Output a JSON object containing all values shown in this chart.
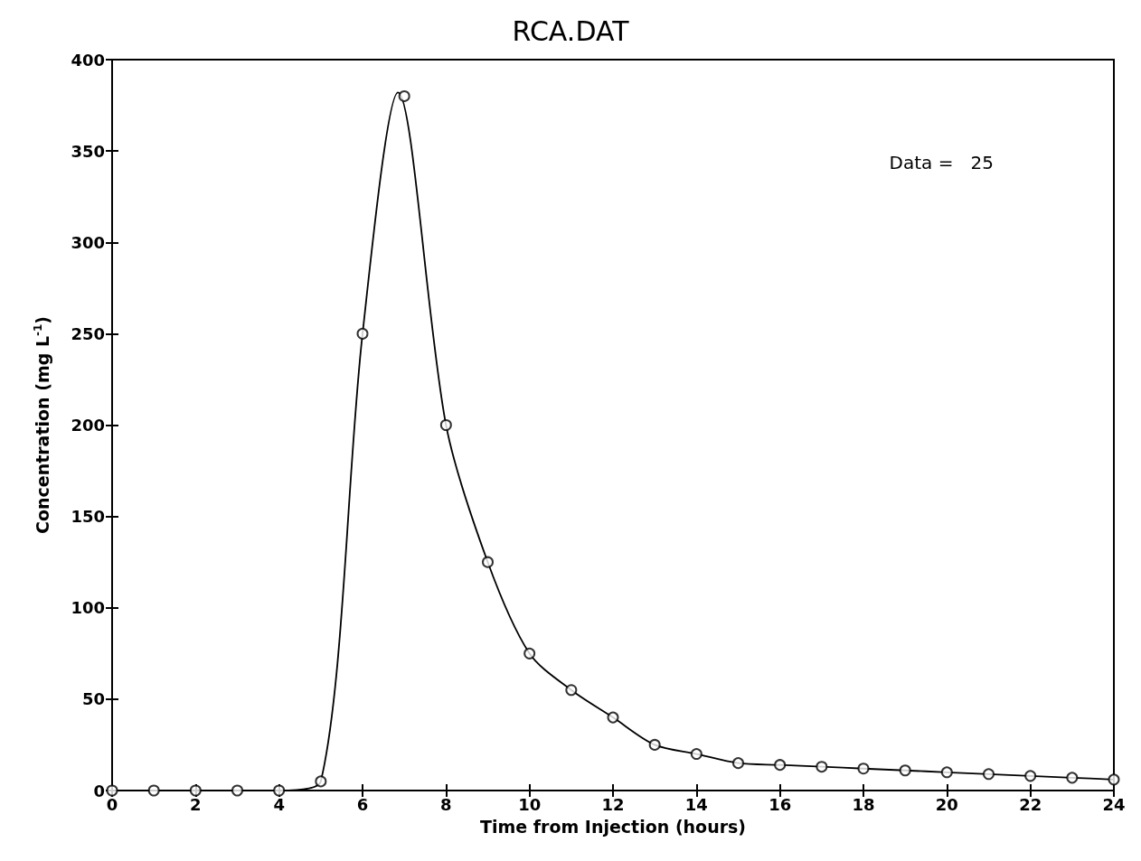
{
  "chart_data": {
    "type": "scatter",
    "title": "RCA.DAT",
    "xlabel": "Time from Injection (hours)",
    "ylabel": "Concentration (mg L$^{-1}$)",
    "annotations": [
      "Data =   25"
    ],
    "xlim": [
      0,
      24
    ],
    "xticks": [
      0,
      2,
      4,
      6,
      8,
      10,
      12,
      14,
      16,
      18,
      20,
      22,
      24
    ],
    "ylim": [
      0,
      400
    ],
    "yticks": [
      0,
      50,
      100,
      150,
      200,
      250,
      300,
      350,
      400
    ],
    "grid": false,
    "marker": "circle",
    "series": [
      {
        "color": "#000000",
        "x": [
          0,
          1,
          2,
          3,
          4,
          5,
          6,
          7,
          8,
          9,
          10,
          11,
          12,
          13,
          14,
          15,
          16,
          17,
          18,
          19,
          20,
          21,
          22,
          23,
          24
        ],
        "values": [
          0,
          0,
          0,
          0,
          0,
          5,
          250,
          380,
          200,
          125,
          75,
          55,
          40,
          25,
          20,
          15,
          14,
          13,
          12,
          11,
          10,
          9,
          8,
          7,
          6
        ]
      },
      {
        "type": "line",
        "color": "#000000",
        "marker": "none",
        "line_style": "solid",
        "x": [
          0,
          4,
          5,
          6,
          6.85,
          8,
          9,
          10,
          11,
          12,
          13,
          14,
          15,
          16,
          17,
          18,
          19,
          20,
          21,
          22,
          23,
          24
        ],
        "values": [
          0,
          0,
          5,
          250,
          382,
          200,
          125,
          75,
          55,
          40,
          25,
          20,
          15,
          14,
          13,
          12,
          11,
          10,
          9,
          8,
          7,
          6
        ]
      }
    ]
  }
}
